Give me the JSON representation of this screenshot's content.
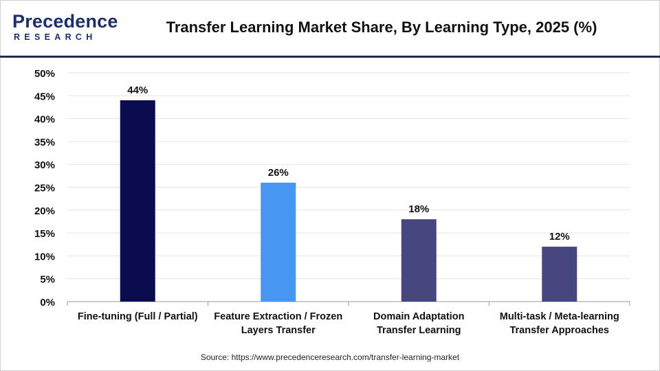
{
  "brand": {
    "logo_main": "Precedence",
    "logo_sub": "RESEARCH",
    "color": "#1b2f6b"
  },
  "title": "Transfer Learning Market Share, By Learning Type, 2025 (%)",
  "source": "Source: https://www.precedenceresearch.com/transfer-learning-market",
  "chart_data": {
    "type": "bar",
    "title": "Transfer Learning Market Share, By Learning Type, 2025 (%)",
    "xlabel": "",
    "ylabel": "",
    "categories": [
      [
        "Fine-tuning (Full / Partial)"
      ],
      [
        "Feature Extraction / Frozen",
        "Layers Transfer"
      ],
      [
        "Domain Adaptation",
        "Transfer Learning"
      ],
      [
        "Multi-task / Meta-learning",
        "Transfer Approaches"
      ]
    ],
    "values": [
      44,
      26,
      18,
      12
    ],
    "data_labels": [
      "44%",
      "26%",
      "18%",
      "12%"
    ],
    "colors": [
      "#0b0b4f",
      "#4796f2",
      "#47477f",
      "#47477f"
    ],
    "ylim": [
      0,
      50
    ],
    "yticks": [
      0,
      5,
      10,
      15,
      20,
      25,
      30,
      35,
      40,
      45,
      50
    ],
    "ytick_labels": [
      "0%",
      "5%",
      "10%",
      "15%",
      "20%",
      "25%",
      "30%",
      "35%",
      "40%",
      "45%",
      "50%"
    ],
    "grid": true,
    "legend": "none"
  }
}
